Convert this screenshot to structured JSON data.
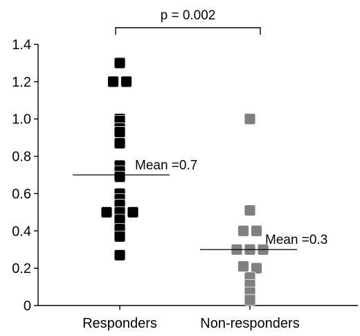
{
  "chart_data": {
    "type": "scatter",
    "categories": [
      "Responders",
      "Non-responders"
    ],
    "ylim": [
      0,
      1.4
    ],
    "yticks": [
      0,
      0.2,
      0.4,
      0.6,
      0.8,
      1.0,
      1.2,
      1.4
    ],
    "ytick_labels": [
      "0",
      "0.2",
      "0.4",
      "0.6",
      "0.8",
      "1.0",
      "1.2",
      "1.4"
    ],
    "grid": false,
    "series": [
      {
        "category": "Responders",
        "color": "#000000",
        "mean": 0.7,
        "mean_label": "Mean =0.7",
        "points": [
          {
            "y": 1.3,
            "offset": 0
          },
          {
            "y": 1.2,
            "offset": -1
          },
          {
            "y": 1.2,
            "offset": 1
          },
          {
            "y": 1.0,
            "offset": 0
          },
          {
            "y": 0.99,
            "offset": 0
          },
          {
            "y": 0.95,
            "offset": 0
          },
          {
            "y": 0.93,
            "offset": 0
          },
          {
            "y": 0.87,
            "offset": 0
          },
          {
            "y": 0.75,
            "offset": 0
          },
          {
            "y": 0.72,
            "offset": 0
          },
          {
            "y": 0.69,
            "offset": 0
          },
          {
            "y": 0.6,
            "offset": 0
          },
          {
            "y": 0.57,
            "offset": 0
          },
          {
            "y": 0.54,
            "offset": 0
          },
          {
            "y": 0.5,
            "offset": -2
          },
          {
            "y": 0.5,
            "offset": 0
          },
          {
            "y": 0.5,
            "offset": 2
          },
          {
            "y": 0.46,
            "offset": 0
          },
          {
            "y": 0.41,
            "offset": 0
          },
          {
            "y": 0.37,
            "offset": 0
          },
          {
            "y": 0.27,
            "offset": 0
          }
        ]
      },
      {
        "category": "Non-responders",
        "color": "#808080",
        "mean": 0.3,
        "mean_label": "Mean =0.3",
        "points": [
          {
            "y": 1.0,
            "offset": 0
          },
          {
            "y": 0.51,
            "offset": 0
          },
          {
            "y": 0.4,
            "offset": -1
          },
          {
            "y": 0.4,
            "offset": 1
          },
          {
            "y": 0.3,
            "offset": -2
          },
          {
            "y": 0.3,
            "offset": 0
          },
          {
            "y": 0.3,
            "offset": 2
          },
          {
            "y": 0.21,
            "offset": -1
          },
          {
            "y": 0.2,
            "offset": 1
          },
          {
            "y": 0.15,
            "offset": 0
          },
          {
            "y": 0.11,
            "offset": 0
          },
          {
            "y": 0.07,
            "offset": 0
          },
          {
            "y": 0.03,
            "offset": 0
          }
        ]
      }
    ],
    "annotation": {
      "text": "p = 0.002",
      "between": [
        "Responders",
        "Non-responders"
      ]
    }
  }
}
